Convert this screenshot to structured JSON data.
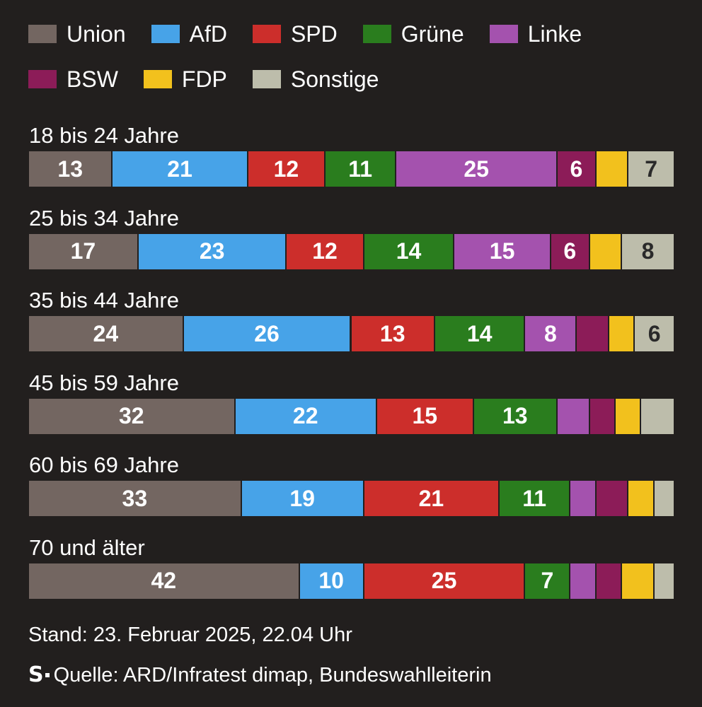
{
  "chart_data": {
    "type": "bar",
    "orientation": "horizontal",
    "stacked": true,
    "unit": "%",
    "categories": [
      "18 bis 24 Jahre",
      "25 bis 34 Jahre",
      "35 bis 44 Jahre",
      "45 bis 59 Jahre",
      "60 bis 69 Jahre",
      "70 und älter"
    ],
    "series": [
      {
        "name": "Union",
        "color": "#736661",
        "label_color": "#ffffff",
        "values": [
          13,
          17,
          24,
          32,
          33,
          42
        ],
        "labels": [
          "13",
          "17",
          "24",
          "32",
          "33",
          "42"
        ]
      },
      {
        "name": "AfD",
        "color": "#47a3e8",
        "label_color": "#ffffff",
        "values": [
          21,
          23,
          26,
          22,
          19,
          10
        ],
        "labels": [
          "21",
          "23",
          "26",
          "22",
          "19",
          "10"
        ]
      },
      {
        "name": "SPD",
        "color": "#cc2e2b",
        "label_color": "#ffffff",
        "values": [
          12,
          12,
          13,
          15,
          21,
          25
        ],
        "labels": [
          "12",
          "12",
          "13",
          "15",
          "21",
          "25"
        ]
      },
      {
        "name": "Grüne",
        "color": "#2a7d1e",
        "label_color": "#ffffff",
        "values": [
          11,
          14,
          14,
          13,
          11,
          7
        ],
        "labels": [
          "11",
          "14",
          "14",
          "13",
          "11",
          "7"
        ]
      },
      {
        "name": "Linke",
        "color": "#a452ae",
        "label_color": "#ffffff",
        "values": [
          25,
          15,
          8,
          5,
          4,
          4
        ],
        "labels": [
          "25",
          "15",
          "8",
          "",
          "",
          ""
        ]
      },
      {
        "name": "BSW",
        "color": "#8c1c58",
        "label_color": "#ffffff",
        "values": [
          6,
          6,
          5,
          4,
          5,
          4
        ],
        "labels": [
          "6",
          "6",
          "",
          "",
          "",
          ""
        ]
      },
      {
        "name": "FDP",
        "color": "#f2c11d",
        "label_color": "#222222",
        "values": [
          5,
          5,
          4,
          4,
          4,
          5
        ],
        "labels": [
          "",
          "",
          "",
          "",
          "",
          ""
        ]
      },
      {
        "name": "Sonstige",
        "color": "#bdbdab",
        "label_color": "#2a2a2a",
        "values": [
          7,
          8,
          6,
          5,
          3,
          3
        ],
        "labels": [
          "7",
          "8",
          "6",
          "",
          "",
          ""
        ]
      }
    ],
    "legend_position": "top-left"
  },
  "footer": {
    "stand": "Stand: 23. Februar 2025, 22.04 Uhr",
    "source": "Quelle: ARD/Infratest dimap, Bundeswahlleiterin",
    "logo_letter": "S"
  }
}
